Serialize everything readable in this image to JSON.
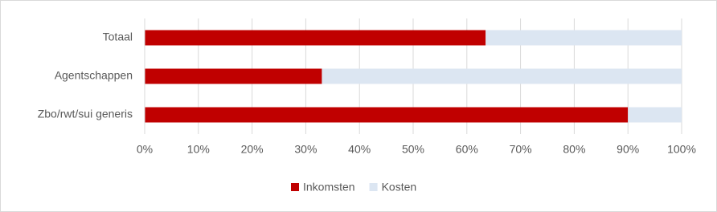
{
  "chart_data": {
    "type": "stacked-bar-horizontal",
    "categories": [
      "Totaal",
      "Agentschappen",
      "Zbo/rwt/sui generis"
    ],
    "series": [
      {
        "name": "Inkomsten",
        "color": "#c00000",
        "values": [
          63.5,
          33,
          90
        ]
      },
      {
        "name": "Kosten",
        "color": "#dce6f2",
        "values": [
          36.5,
          67,
          10
        ]
      }
    ],
    "xlim": [
      0,
      100
    ],
    "xticks": [
      {
        "value": 0,
        "label": "0%"
      },
      {
        "value": 10,
        "label": "10%"
      },
      {
        "value": 20,
        "label": "20%"
      },
      {
        "value": 30,
        "label": "30%"
      },
      {
        "value": 40,
        "label": "40%"
      },
      {
        "value": 50,
        "label": "50%"
      },
      {
        "value": 60,
        "label": "60%"
      },
      {
        "value": 70,
        "label": "70%"
      },
      {
        "value": 80,
        "label": "80%"
      },
      {
        "value": 90,
        "label": "90%"
      },
      {
        "value": 100,
        "label": "100%"
      }
    ],
    "grid": true,
    "legend": "bottom"
  }
}
